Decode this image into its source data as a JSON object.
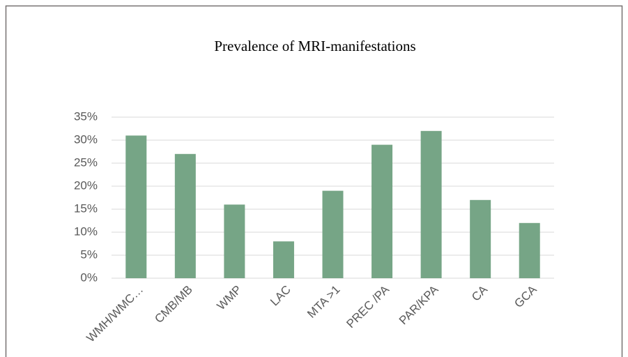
{
  "chart_data": {
    "type": "bar",
    "title": "Prevalence of MRI-manifestations",
    "categories": [
      "WMH/WMC…",
      "CMB/MB",
      "WMP",
      "LAC",
      "MTA >1",
      "PREC /PA",
      "PAR/KPA",
      "CA",
      "GCA"
    ],
    "values": [
      31,
      27,
      16,
      8,
      19,
      29,
      32,
      17,
      12
    ],
    "color": "#76a586",
    "ylim": [
      0,
      35
    ],
    "yticks": [
      {
        "value": 0,
        "label": "0%"
      },
      {
        "value": 5,
        "label": "5%"
      },
      {
        "value": 10,
        "label": "10%"
      },
      {
        "value": 15,
        "label": "15%"
      },
      {
        "value": 20,
        "label": "20%"
      },
      {
        "value": 25,
        "label": "25%"
      },
      {
        "value": 30,
        "label": "30%"
      },
      {
        "value": 35,
        "label": "35%"
      }
    ],
    "grid": true
  }
}
